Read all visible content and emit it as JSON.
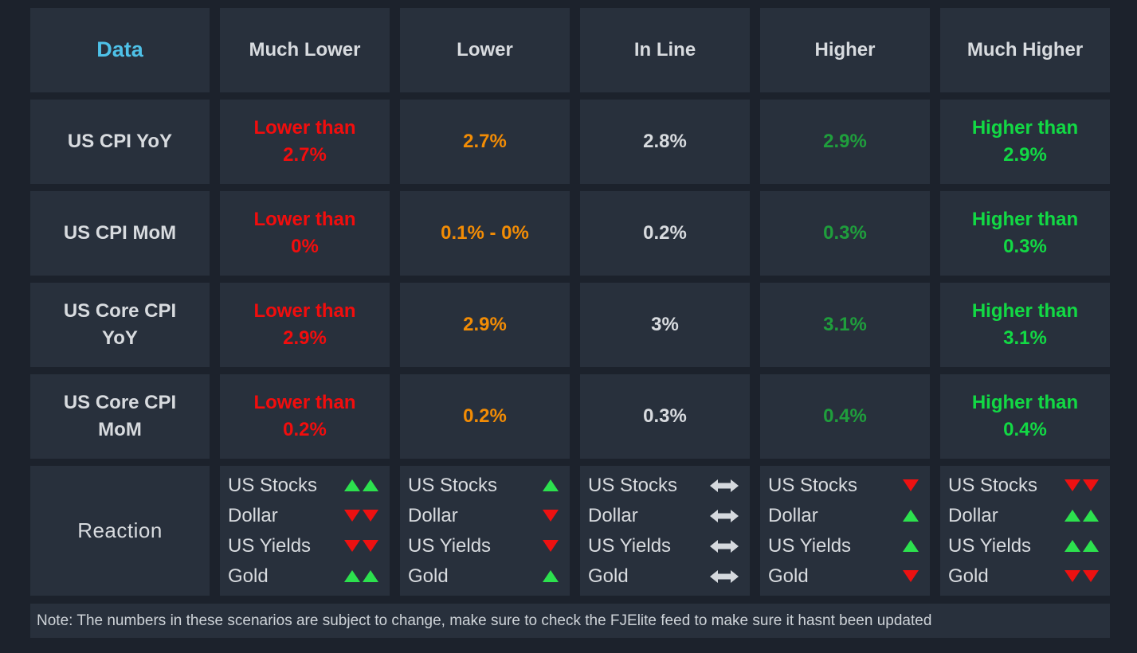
{
  "colors": {
    "background": "#1c222c",
    "cell_background": "#28303c",
    "header_text": "#d8dbdf",
    "data_header_blue": "#4ec1e8",
    "much_lower_red": "#f20d0d",
    "lower_orange": "#f28c05",
    "in_line_white": "#d8dbdf",
    "higher_green": "#1f9e3c",
    "much_higher_green": "#12d944",
    "arrow_up_green": "#2ce14e",
    "arrow_down_red": "#ed1111",
    "flat_arrow_gray": "#d5d9de"
  },
  "chart_data": {
    "type": "table",
    "columns": [
      "Data",
      "Much Lower",
      "Lower",
      "In Line",
      "Higher",
      "Much Higher"
    ],
    "rows": [
      {
        "label": "US CPI YoY",
        "cells": [
          "Lower than\n2.7%",
          "2.7%",
          "2.8%",
          "2.9%",
          "Higher than\n2.9%"
        ]
      },
      {
        "label": "US CPI MoM",
        "cells": [
          "Lower than\n0%",
          "0.1% - 0%",
          "0.2%",
          "0.3%",
          "Higher than\n0.3%"
        ]
      },
      {
        "label": "US Core CPI\nYoY",
        "cells": [
          "Lower than\n2.9%",
          "2.9%",
          "3%",
          "3.1%",
          "Higher than\n3.1%"
        ]
      },
      {
        "label": "US Core CPI\nMoM",
        "cells": [
          "Lower than\n0.2%",
          "0.2%",
          "0.3%",
          "0.4%",
          "Higher than\n0.4%"
        ]
      }
    ],
    "reaction": {
      "label": "Reaction",
      "assets": [
        "US Stocks",
        "Dollar",
        "US Yields",
        "Gold"
      ],
      "cells": [
        {
          "column": "Much Lower",
          "arrows": [
            "up2",
            "down2",
            "down2",
            "up2"
          ]
        },
        {
          "column": "Lower",
          "arrows": [
            "up1",
            "down1",
            "down1",
            "up1"
          ]
        },
        {
          "column": "In Line",
          "arrows": [
            "flat",
            "flat",
            "flat",
            "flat"
          ]
        },
        {
          "column": "Higher",
          "arrows": [
            "down1",
            "up1",
            "up1",
            "down1"
          ]
        },
        {
          "column": "Much Higher",
          "arrows": [
            "down2",
            "up2",
            "up2",
            "down2"
          ]
        }
      ]
    },
    "note": "Note: The numbers in these scenarios are subject to change, make sure to check the FJElite feed to make sure it hasnt been updated"
  }
}
